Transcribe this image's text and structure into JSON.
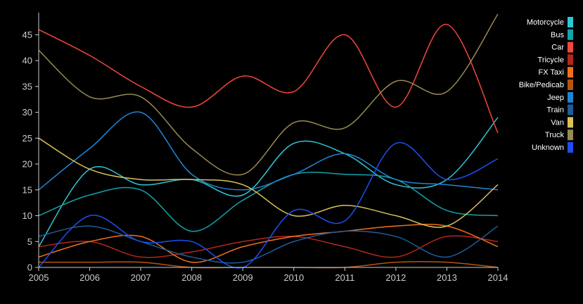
{
  "chart_data": {
    "type": "line",
    "title": "",
    "xlabel": "",
    "ylabel": "",
    "x": [
      2005,
      2006,
      2007,
      2008,
      2009,
      2010,
      2011,
      2012,
      2013,
      2014
    ],
    "xlim": [
      2005,
      2014
    ],
    "ylim": [
      0,
      49
    ],
    "yticks": [
      0,
      5,
      10,
      15,
      20,
      25,
      30,
      35,
      40,
      45
    ],
    "grid": false,
    "legend_position": "right",
    "series": [
      {
        "name": "Motorcycle",
        "color": "#2ec7d6",
        "values": [
          4,
          19,
          16,
          17,
          14,
          24,
          22,
          16,
          17,
          29
        ]
      },
      {
        "name": "Bus",
        "color": "#13a3ab",
        "values": [
          10,
          14,
          15,
          7,
          13,
          18,
          18,
          17,
          11,
          10
        ]
      },
      {
        "name": "Car",
        "color": "#f2473b",
        "values": [
          46,
          41,
          35,
          31,
          37,
          34,
          45,
          31,
          47,
          26
        ]
      },
      {
        "name": "Tricycle",
        "color": "#b3261e",
        "values": [
          4,
          5,
          2,
          3,
          5,
          6,
          4,
          2,
          6,
          5
        ]
      },
      {
        "name": "FX Taxi",
        "color": "#f2711c",
        "values": [
          2,
          5,
          6,
          1,
          4,
          6,
          7,
          8,
          8,
          4
        ]
      },
      {
        "name": "Bike/Pedicab",
        "color": "#b4550f",
        "values": [
          1,
          1,
          1,
          0,
          0,
          0,
          0,
          1,
          1,
          0
        ]
      },
      {
        "name": "Jeep",
        "color": "#1e86d6",
        "values": [
          15,
          23,
          30,
          18,
          15,
          18,
          22,
          17,
          16,
          15
        ]
      },
      {
        "name": "Train",
        "color": "#1f5c99",
        "values": [
          6,
          8,
          5,
          2,
          1,
          5,
          7,
          6,
          2,
          8
        ]
      },
      {
        "name": "Van",
        "color": "#d9c25a",
        "values": [
          25,
          19,
          17,
          17,
          16,
          10,
          12,
          10,
          8,
          16
        ]
      },
      {
        "name": "Truck",
        "color": "#9a8a52",
        "values": [
          42,
          33,
          33,
          23,
          18,
          28,
          27,
          36,
          34,
          49
        ]
      },
      {
        "name": "Unknown",
        "color": "#1d4ff0",
        "values": [
          0,
          10,
          5,
          5,
          0,
          11,
          9,
          24,
          17,
          21
        ]
      }
    ]
  }
}
